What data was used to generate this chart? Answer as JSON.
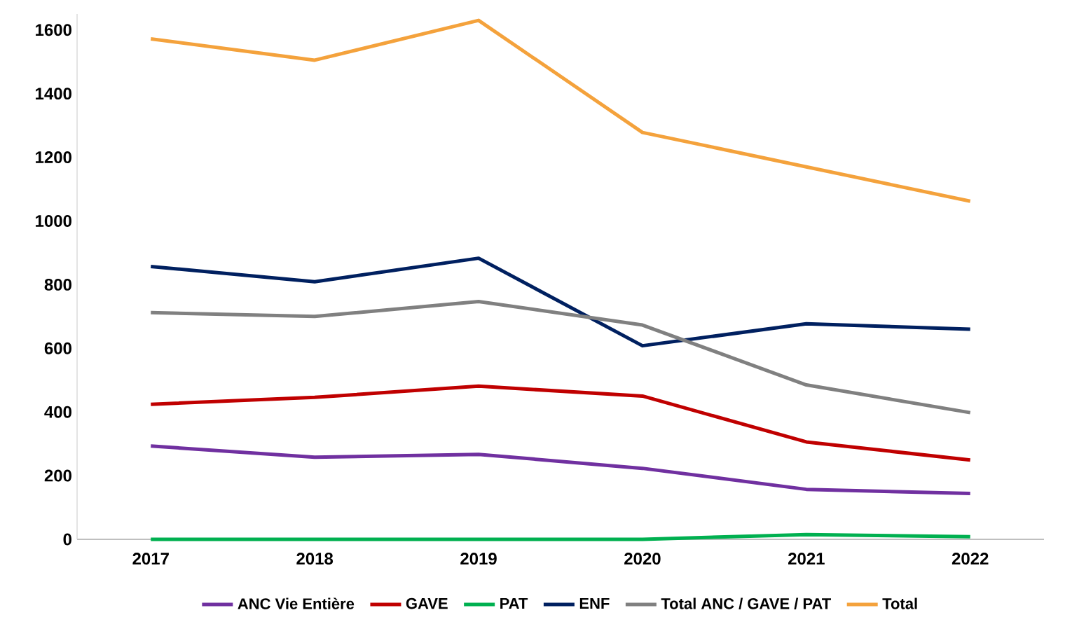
{
  "chart_data": {
    "type": "line",
    "categories": [
      "2017",
      "2018",
      "2019",
      "2020",
      "2021",
      "2022"
    ],
    "series": [
      {
        "name": "ANC Vie Entière",
        "color": "#7030a0",
        "values": [
          293,
          258,
          267,
          223,
          157,
          144
        ]
      },
      {
        "name": "GAVE",
        "color": "#c00000",
        "values": [
          424,
          446,
          481,
          450,
          306,
          249
        ]
      },
      {
        "name": "PAT",
        "color": "#00b050",
        "values": [
          0,
          0,
          0,
          0,
          15,
          8
        ]
      },
      {
        "name": "ENF",
        "color": "#002060",
        "values": [
          857,
          809,
          883,
          608,
          677,
          660
        ]
      },
      {
        "name": "Total ANC / GAVE / PAT",
        "color": "#808080",
        "values": [
          712,
          700,
          747,
          673,
          485,
          398
        ]
      },
      {
        "name": "Total",
        "color": "#f4a23c",
        "values": [
          1572,
          1505,
          1630,
          1278,
          1170,
          1062
        ]
      }
    ],
    "ylim": [
      0,
      1650
    ],
    "yticks": [
      0,
      200,
      400,
      600,
      800,
      1000,
      1200,
      1400,
      1600
    ],
    "grid": false,
    "legend": "bottom",
    "marker": "none",
    "line_style": "solid"
  }
}
